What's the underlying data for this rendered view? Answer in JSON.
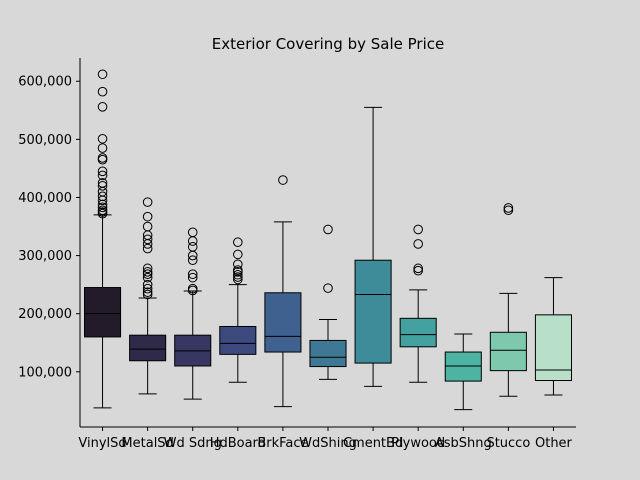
{
  "chart_data": {
    "type": "box",
    "title": "Exterior Covering by Sale Price",
    "xlabel": "",
    "ylabel": "",
    "ylim": [
      5000,
      640000
    ],
    "yticks": [
      100000,
      200000,
      300000,
      400000,
      500000,
      600000
    ],
    "ytick_labels": [
      "100,000",
      "200,000",
      "300,000",
      "400,000",
      "500,000",
      "600,000"
    ],
    "grid": false,
    "categories": [
      "VinylSd",
      "MetalSd",
      "Wd Sdng",
      "HdBoard",
      "BrkFace",
      "WdShing",
      "CmentBd",
      "Plywood",
      "AsbShng",
      "Stucco",
      "Other"
    ],
    "boxes": [
      {
        "min": 38000,
        "q1": 160000,
        "median": 200000,
        "q3": 245000,
        "max": 370000,
        "outliers": [
          612000,
          582000,
          556000,
          501000,
          485000,
          468000,
          465000,
          445000,
          438000,
          425000,
          420000,
          410000,
          402000,
          395000,
          388000,
          383000,
          378000,
          375000,
          372000
        ],
        "color": "#231b2a"
      },
      {
        "min": 62000,
        "q1": 119000,
        "median": 139000,
        "q3": 163000,
        "max": 227000,
        "outliers": [
          392000,
          367000,
          350000,
          335000,
          328000,
          320000,
          312000,
          278000,
          272000,
          268000,
          262000,
          250000,
          243000,
          237000,
          233000
        ],
        "color": "#302a4a"
      },
      {
        "min": 53000,
        "q1": 110000,
        "median": 136000,
        "q3": 163000,
        "max": 239000,
        "outliers": [
          340000,
          325000,
          315000,
          300000,
          292000,
          268000,
          262000,
          243000,
          240000
        ],
        "color": "#383763"
      },
      {
        "min": 82000,
        "q1": 130000,
        "median": 149000,
        "q3": 178000,
        "max": 250000,
        "outliers": [
          323000,
          302000,
          285000,
          275000,
          272000,
          267000,
          263000,
          259000
        ],
        "color": "#3d4a80"
      },
      {
        "min": 40000,
        "q1": 134000,
        "median": 161000,
        "q3": 236000,
        "max": 358000,
        "outliers": [
          430000
        ],
        "color": "#3f6190"
      },
      {
        "min": 87000,
        "q1": 109000,
        "median": 125000,
        "q3": 154000,
        "max": 190000,
        "outliers": [
          345000,
          244000
        ],
        "color": "#3e7895"
      },
      {
        "min": 75000,
        "q1": 115000,
        "median": 233000,
        "q3": 292000,
        "max": 555000,
        "outliers": [],
        "color": "#3e8c9a"
      },
      {
        "min": 82000,
        "q1": 143000,
        "median": 164000,
        "q3": 192000,
        "max": 241000,
        "outliers": [
          345000,
          320000,
          278000,
          274000
        ],
        "color": "#43a19f"
      },
      {
        "min": 35000,
        "q1": 84000,
        "median": 110000,
        "q3": 134000,
        "max": 165000,
        "outliers": [],
        "color": "#4db3a3"
      },
      {
        "min": 58000,
        "q1": 102000,
        "median": 137000,
        "q3": 168000,
        "max": 235000,
        "outliers": [
          382000,
          378000
        ],
        "color": "#7ec9ad"
      },
      {
        "min": 60000,
        "q1": 85000,
        "median": 103000,
        "q3": 198000,
        "max": 262000,
        "outliers": [],
        "color": "#b8e0c8"
      }
    ]
  }
}
